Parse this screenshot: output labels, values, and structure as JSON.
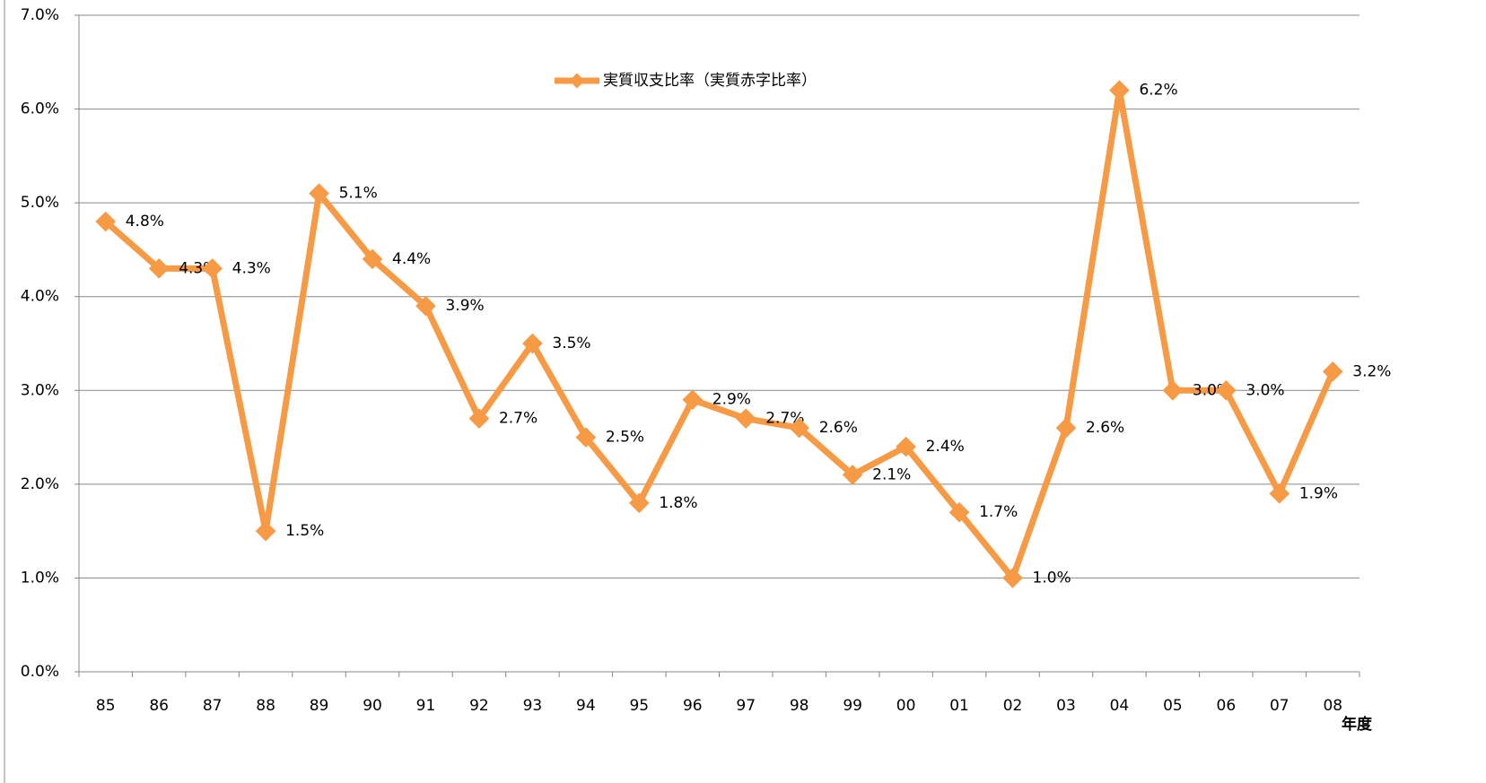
{
  "chart_data": {
    "type": "line",
    "x_label": "年度",
    "categories": [
      "85",
      "86",
      "87",
      "88",
      "89",
      "90",
      "91",
      "92",
      "93",
      "94",
      "95",
      "96",
      "97",
      "98",
      "99",
      "00",
      "01",
      "02",
      "03",
      "04",
      "05",
      "06",
      "07",
      "08"
    ],
    "series": [
      {
        "name": "実質収支比率（実質赤字比率）",
        "color": "#f79a45",
        "values": [
          4.8,
          4.3,
          4.3,
          1.5,
          5.1,
          4.4,
          3.9,
          2.7,
          3.5,
          2.5,
          1.8,
          2.9,
          2.7,
          2.6,
          2.1,
          2.4,
          1.7,
          1.0,
          2.6,
          6.2,
          3.0,
          3.0,
          1.9,
          3.2
        ],
        "value_labels": [
          "4.8%",
          "4.3%",
          "4.3%",
          "1.5%",
          "5.1%",
          "4.4%",
          "3.9%",
          "2.7%",
          "3.5%",
          "2.5%",
          "1.8%",
          "2.9%",
          "2.7%",
          "2.6%",
          "2.1%",
          "2.4%",
          "1.7%",
          "1.0%",
          "2.6%",
          "6.2%",
          "3.0%",
          "3.0%",
          "1.9%",
          "3.2%"
        ]
      }
    ],
    "ylim": [
      0,
      7
    ],
    "yticks": [
      {
        "value": 0,
        "label": "0.0%"
      },
      {
        "value": 1,
        "label": "1.0%"
      },
      {
        "value": 2,
        "label": "2.0%"
      },
      {
        "value": 3,
        "label": "3.0%"
      },
      {
        "value": 4,
        "label": "4.0%"
      },
      {
        "value": 5,
        "label": "5.0%"
      },
      {
        "value": 6,
        "label": "6.0%"
      },
      {
        "value": 7,
        "label": "7.0%"
      }
    ],
    "grid": true
  }
}
